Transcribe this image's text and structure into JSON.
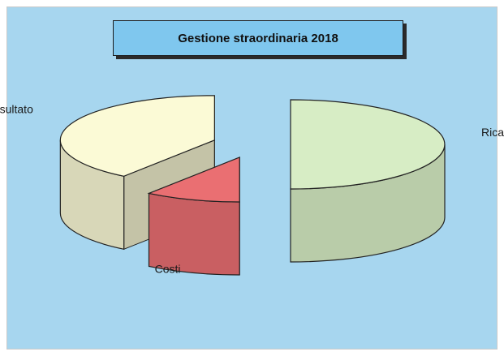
{
  "chart_data": {
    "type": "pie",
    "title": "Gestione straordinaria 2018",
    "slices": [
      {
        "label": "Ricavi",
        "value": 50,
        "color": "#d7edc5"
      },
      {
        "label": "Costi",
        "value": 10,
        "color": "#ea6f72"
      },
      {
        "label": "Risultato",
        "value": 40,
        "color": "#fbfad6"
      }
    ],
    "style": "3d-exploded",
    "background": "#a7d6ef"
  }
}
